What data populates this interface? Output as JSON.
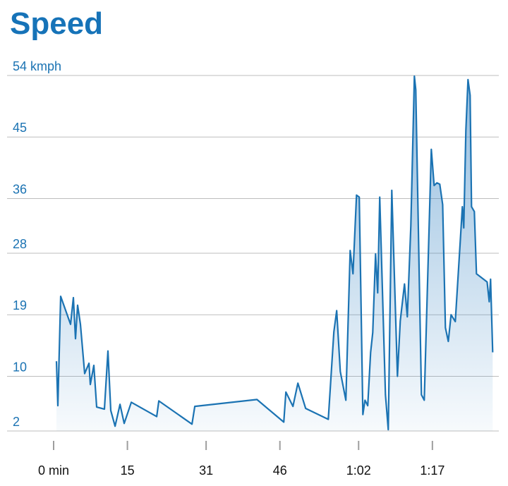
{
  "chart_data": {
    "type": "line",
    "title": "Speed",
    "color": "#1b73b3",
    "x": [
      0.57,
      0.86,
      1.44,
      3.44,
      4.02,
      4.45,
      4.88,
      5.45,
      6.31,
      7.18,
      7.46,
      8.18,
      8.75,
      10.33,
      11.05,
      11.62,
      12.49,
      13.49,
      14.35,
      15.79,
      20.95,
      21.38,
      28.13,
      28.7,
      41.33,
      46.79,
      47.22,
      48.65,
      49.66,
      51.23,
      55.83,
      56.97,
      57.55,
      58.27,
      59.41,
      60.28,
      60.85,
      61.57,
      62.14,
      62.86,
      63.29,
      63.86,
      64.44,
      64.87,
      65.44,
      65.87,
      66.3,
      67.45,
      68.03,
      68.74,
      69.89,
      70.47,
      71.33,
      71.9,
      72.62,
      73.34,
      73.62,
      74.77,
      75.34,
      76.78,
      77.35,
      77.93,
      78.5,
      79.08,
      79.65,
      80.23,
      80.8,
      81.66,
      82.66,
      83.09,
      83.38,
      83.81,
      84.24,
      84.67,
      84.96,
      85.53,
      85.96,
      88.12,
      88.55,
      88.83,
      89.26
    ],
    "values": [
      12.2,
      5.7,
      21.7,
      17.6,
      21.5,
      15.5,
      20.4,
      17.6,
      10.4,
      11.9,
      8.8,
      11.6,
      5.5,
      5.2,
      13.7,
      5.0,
      2.7,
      5.9,
      3.1,
      6.2,
      4.1,
      6.4,
      3.0,
      5.6,
      6.6,
      3.3,
      7.7,
      5.6,
      9.0,
      5.3,
      3.7,
      16.5,
      19.6,
      10.7,
      6.5,
      28.4,
      25.0,
      36.5,
      36.2,
      4.4,
      6.5,
      5.7,
      13.5,
      16.4,
      27.9,
      22.2,
      36.2,
      7.3,
      2.2,
      37.2,
      10.0,
      18.1,
      23.5,
      18.7,
      32.0,
      53.9,
      51.9,
      7.3,
      6.5,
      43.2,
      37.9,
      38.3,
      38.1,
      35.1,
      17.1,
      15.1,
      19.0,
      18.0,
      29.7,
      34.8,
      31.7,
      46.0,
      53.4,
      51.1,
      34.8,
      34.1,
      25.0,
      23.8,
      20.9,
      24.2,
      13.5
    ],
    "xlim": [
      0,
      89.5
    ],
    "xticks": [
      {
        "value": 0,
        "label": "0 min"
      },
      15,
      31,
      46,
      {
        "value": 62,
        "label": "1:02"
      },
      {
        "value": 77,
        "label": "1:17"
      }
    ],
    "ylim": [
      2,
      54
    ],
    "yticks": [
      2,
      10,
      19,
      28,
      36,
      45,
      {
        "value": 54,
        "label": "54 kmph"
      }
    ],
    "grid": true
  }
}
